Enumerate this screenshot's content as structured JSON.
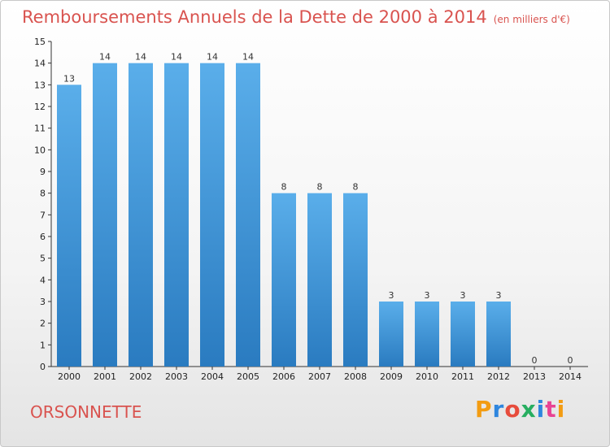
{
  "header": {
    "title": "Remboursements Annuels de la Dette de 2000 à 2014",
    "unit": "(en milliers d'€)"
  },
  "footer": {
    "commune": "ORSONNETTE",
    "logo": {
      "letters": [
        "P",
        "r",
        "o",
        "x",
        "i",
        "t",
        "i"
      ],
      "colors": [
        "#f39c12",
        "#2e86de",
        "#e74c3c",
        "#27ae60",
        "#2e86de",
        "#e84393",
        "#f39c12"
      ]
    }
  },
  "chart_data": {
    "type": "bar",
    "categories": [
      "2000",
      "2001",
      "2002",
      "2003",
      "2004",
      "2005",
      "2006",
      "2007",
      "2008",
      "2009",
      "2010",
      "2011",
      "2012",
      "2013",
      "2014"
    ],
    "values": [
      13,
      14,
      14,
      14,
      14,
      14,
      8,
      8,
      8,
      3,
      3,
      3,
      3,
      0,
      0
    ],
    "data_labels": [
      "13",
      "14",
      "14",
      "14",
      "14",
      "14",
      "8",
      "8",
      "8",
      "3",
      "3",
      "3",
      "3",
      "0",
      "0"
    ],
    "y_ticks": [
      "0",
      "1",
      "2",
      "3",
      "4",
      "5",
      "6",
      "7",
      "8",
      "9",
      "10",
      "11",
      "12",
      "13",
      "14",
      "15"
    ],
    "ylim": [
      0,
      15
    ],
    "grid": false,
    "bar_color": "#3a8fd6"
  }
}
